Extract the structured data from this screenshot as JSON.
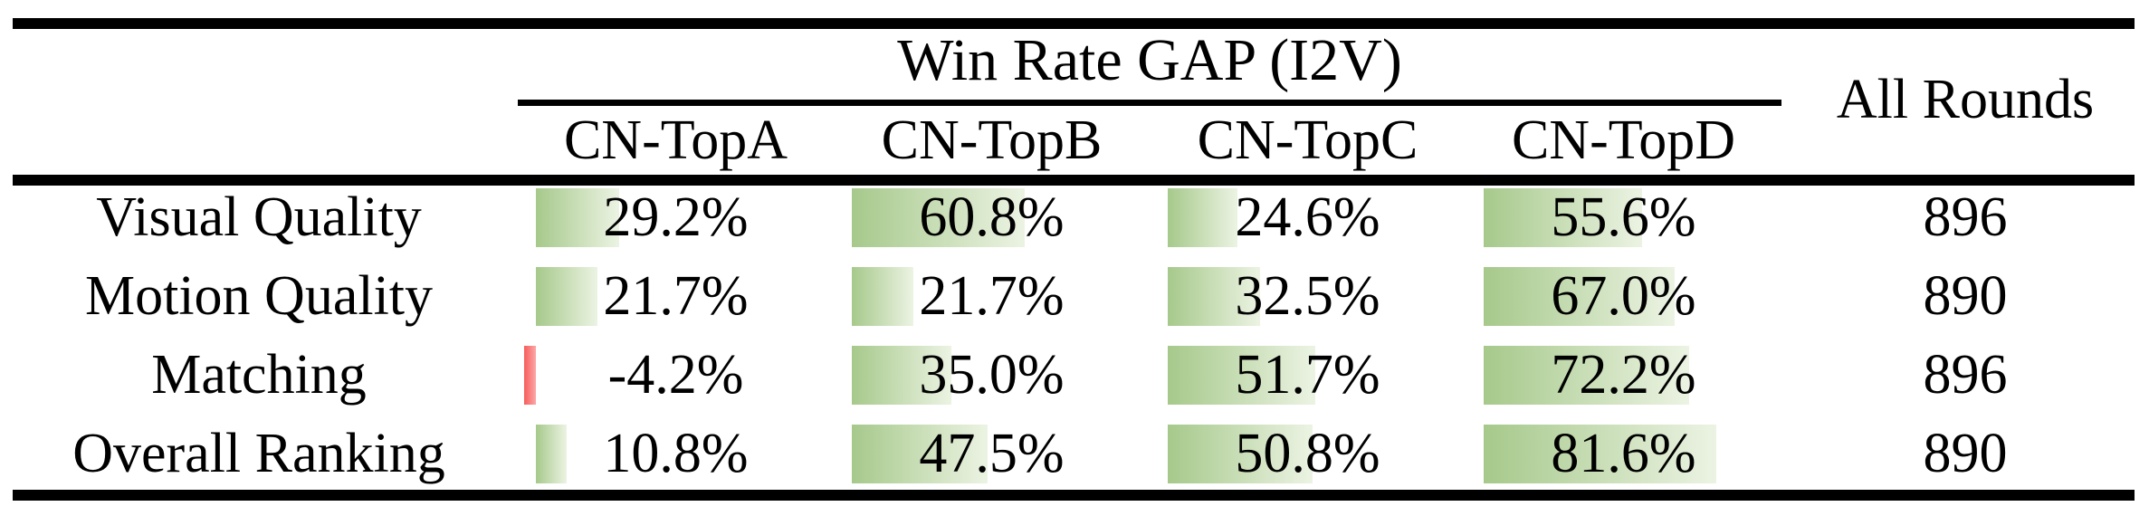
{
  "table": {
    "group_header": "Win Rate GAP (I2V)",
    "all_rounds_header": "All Rounds",
    "columns": [
      "CN-TopA",
      "CN-TopB",
      "CN-TopC",
      "CN-TopD"
    ],
    "rows": [
      {
        "label": "Visual Quality",
        "cells": [
          {
            "display": "29.2%",
            "value": 29.2
          },
          {
            "display": "60.8%",
            "value": 60.8
          },
          {
            "display": "24.6%",
            "value": 24.6
          },
          {
            "display": "55.6%",
            "value": 55.6
          }
        ],
        "all_rounds": "896"
      },
      {
        "label": "Motion Quality",
        "cells": [
          {
            "display": "21.7%",
            "value": 21.7
          },
          {
            "display": "21.7%",
            "value": 21.7
          },
          {
            "display": "32.5%",
            "value": 32.5
          },
          {
            "display": "67.0%",
            "value": 67.0
          }
        ],
        "all_rounds": "890"
      },
      {
        "label": "Matching",
        "cells": [
          {
            "display": "-4.2%",
            "value": -4.2
          },
          {
            "display": "35.0%",
            "value": 35.0
          },
          {
            "display": "51.7%",
            "value": 51.7
          },
          {
            "display": "72.2%",
            "value": 72.2
          }
        ],
        "all_rounds": "896"
      },
      {
        "label": "Overall Ranking",
        "cells": [
          {
            "display": "10.8%",
            "value": 10.8
          },
          {
            "display": "47.5%",
            "value": 47.5
          },
          {
            "display": "50.8%",
            "value": 50.8
          },
          {
            "display": "81.6%",
            "value": 81.6
          }
        ],
        "all_rounds": "890"
      }
    ],
    "colors": {
      "bar_positive_start": "#a6c98b",
      "bar_positive_end": "#ecf3e3",
      "bar_negative_start": "#f75c5c",
      "bar_negative_end": "#fca8a8",
      "rule_color": "#000000"
    }
  },
  "chart_data": {
    "type": "table",
    "title": "Win Rate GAP (I2V)",
    "row_labels": [
      "Visual Quality",
      "Motion Quality",
      "Matching",
      "Overall Ranking"
    ],
    "columns": [
      "CN-TopA",
      "CN-TopB",
      "CN-TopC",
      "CN-TopD",
      "All Rounds"
    ],
    "values": [
      [
        29.2,
        60.8,
        24.6,
        55.6,
        896
      ],
      [
        21.7,
        21.7,
        32.5,
        67.0,
        890
      ],
      [
        -4.2,
        35.0,
        51.7,
        72.2,
        896
      ],
      [
        10.8,
        47.5,
        50.8,
        81.6,
        890
      ]
    ],
    "cell_bar_style": "green gradient data bars, negative values red"
  }
}
